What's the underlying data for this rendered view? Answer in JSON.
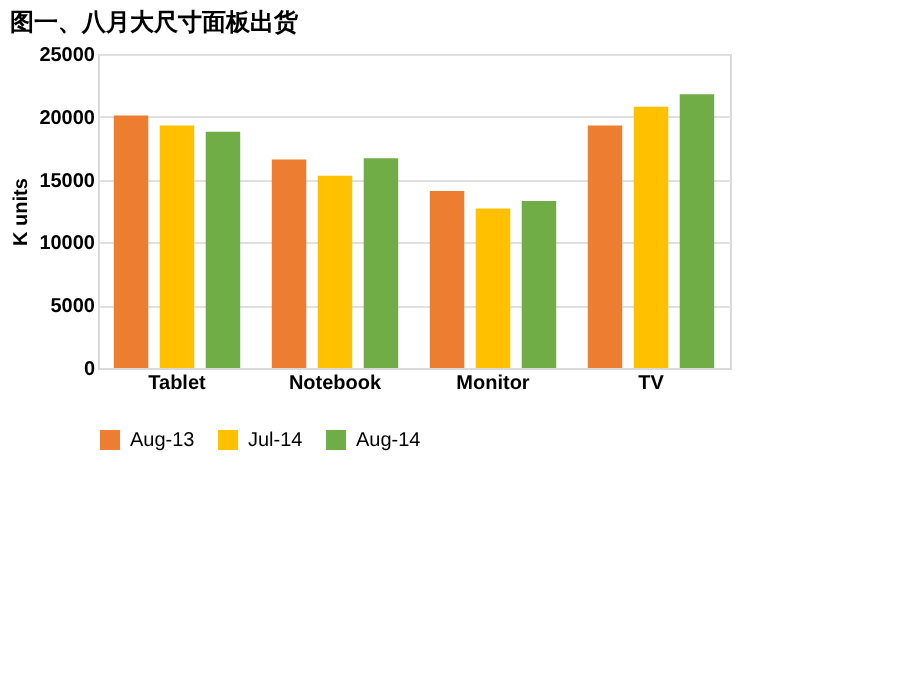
{
  "chart_data": {
    "type": "bar",
    "title": "图一、八月大尺寸面板出货",
    "ylabel": "K units",
    "categories": [
      "Tablet",
      "Notebook",
      "Monitor",
      "TV"
    ],
    "series": [
      {
        "name": "Aug-13",
        "color": "#ed7d31",
        "values": [
          20100,
          16600,
          14100,
          19300
        ]
      },
      {
        "name": "Jul-14",
        "color": "#ffc000",
        "values": [
          19300,
          15300,
          12700,
          20800
        ]
      },
      {
        "name": "Aug-14",
        "color": "#70ad47",
        "values": [
          18800,
          16700,
          13300,
          21800
        ]
      }
    ],
    "ylim": [
      0,
      25000
    ],
    "yticks": [
      0,
      5000,
      10000,
      15000,
      20000,
      25000
    ],
    "grid": "y",
    "legend": "bottom"
  }
}
